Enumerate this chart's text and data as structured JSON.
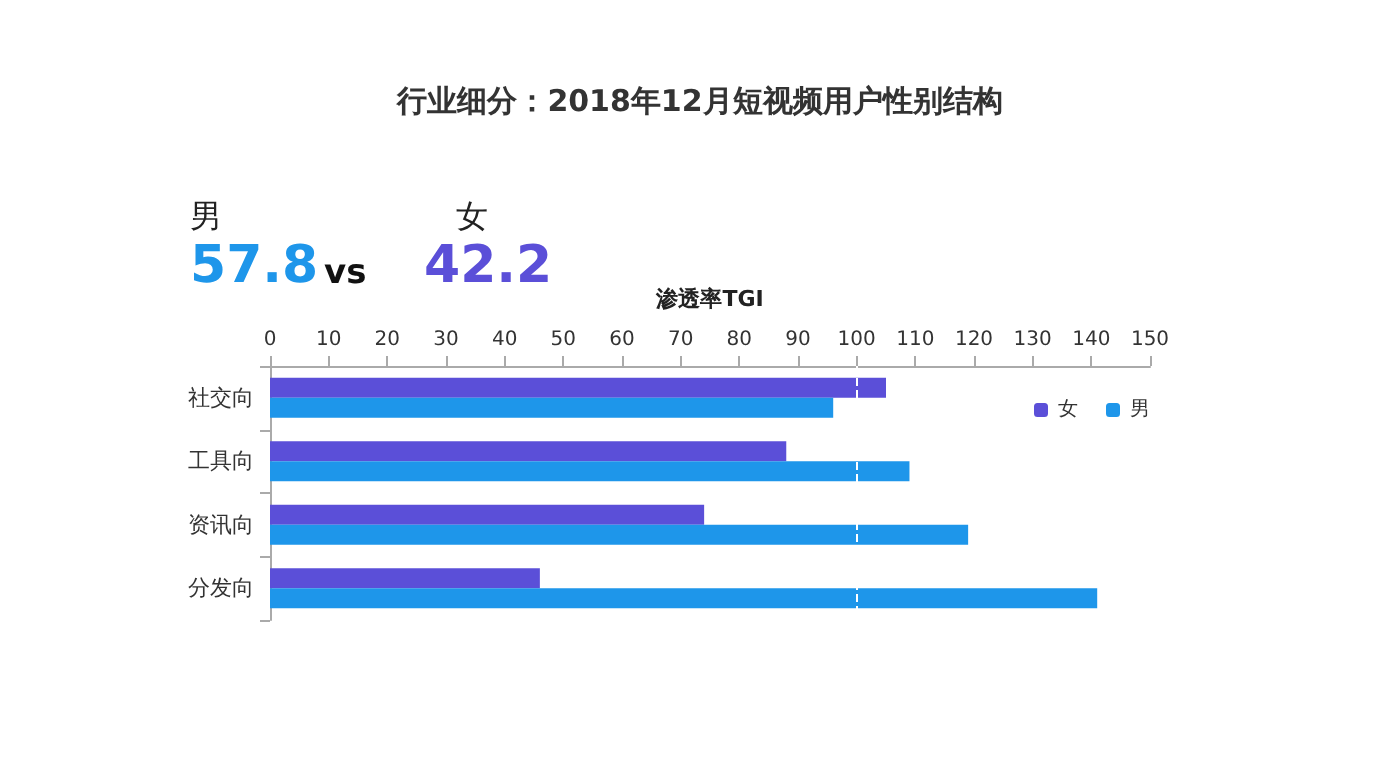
{
  "chart_data": {
    "type": "bar",
    "orientation": "horizontal",
    "title": "行业细分：2018年12月短视频用户性别结构",
    "xlabel": "渗透率TGI",
    "annotations": [
      "男",
      "57.8",
      "vs",
      "女",
      "42.2"
    ],
    "categories": [
      "社交向",
      "工具向",
      "资讯向",
      "分发向"
    ],
    "series": [
      {
        "name": "女",
        "color": "#5b4fd8",
        "values": [
          105,
          88,
          74,
          46
        ]
      },
      {
        "name": "男",
        "color": "#1e96ea",
        "values": [
          96,
          109,
          119,
          141
        ]
      }
    ],
    "xlim": [
      0,
      150
    ],
    "xticks": [
      0,
      10,
      20,
      30,
      40,
      50,
      60,
      70,
      80,
      90,
      100,
      110,
      120,
      130,
      140,
      150
    ],
    "ref_lines": [
      {
        "axis": "x",
        "value": 100,
        "color": "#ffffff",
        "line_style": "dashed"
      }
    ],
    "grid": false,
    "legend": "top right"
  }
}
